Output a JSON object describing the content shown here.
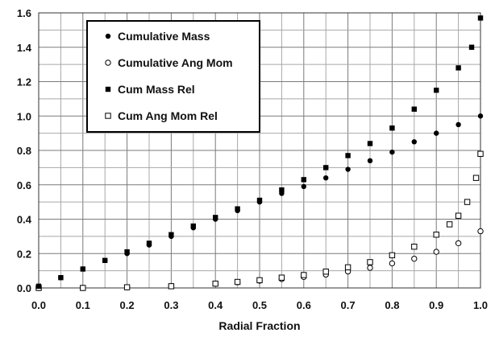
{
  "chart_data": {
    "type": "scatter",
    "title": "",
    "xlabel": "Radial Fraction",
    "ylabel": "",
    "xlim": [
      0,
      1
    ],
    "ylim": [
      0,
      1.6
    ],
    "x_ticks": [
      "0.0",
      "0.1",
      "0.2",
      "0.3",
      "0.4",
      "0.5",
      "0.6",
      "0.7",
      "0.8",
      "0.9",
      "1.0"
    ],
    "y_ticks": [
      "0.0",
      "0.2",
      "0.4",
      "0.6",
      "0.8",
      "1.0",
      "1.2",
      "1.4",
      "1.6"
    ],
    "grid": true,
    "legend_position": "top-left",
    "series": [
      {
        "name": "Cumulative Mass",
        "marker": "filled-circle",
        "x": [
          0,
          0.05,
          0.1,
          0.15,
          0.2,
          0.25,
          0.3,
          0.35,
          0.4,
          0.45,
          0.5,
          0.55,
          0.6,
          0.65,
          0.7,
          0.75,
          0.8,
          0.85,
          0.9,
          0.95,
          1.0
        ],
        "values": [
          0.01,
          0.06,
          0.11,
          0.16,
          0.2,
          0.25,
          0.3,
          0.35,
          0.4,
          0.45,
          0.5,
          0.55,
          0.59,
          0.64,
          0.69,
          0.74,
          0.79,
          0.85,
          0.9,
          0.95,
          1.0
        ]
      },
      {
        "name": "Cumulative Ang Mom",
        "marker": "open-circle",
        "x": [
          0,
          0.1,
          0.2,
          0.3,
          0.4,
          0.45,
          0.5,
          0.55,
          0.6,
          0.65,
          0.7,
          0.75,
          0.8,
          0.85,
          0.9,
          0.95,
          1.0
        ],
        "values": [
          0.0,
          0.0,
          0.004,
          0.01,
          0.025,
          0.033,
          0.042,
          0.052,
          0.064,
          0.078,
          0.096,
          0.117,
          0.143,
          0.17,
          0.21,
          0.26,
          0.33
        ]
      },
      {
        "name": "Cum Mass Rel",
        "marker": "filled-square",
        "x": [
          0,
          0.05,
          0.1,
          0.15,
          0.2,
          0.25,
          0.3,
          0.35,
          0.4,
          0.45,
          0.5,
          0.55,
          0.6,
          0.65,
          0.7,
          0.75,
          0.8,
          0.85,
          0.9,
          0.95,
          0.98,
          1.0
        ],
        "values": [
          0.01,
          0.06,
          0.11,
          0.16,
          0.21,
          0.26,
          0.31,
          0.36,
          0.41,
          0.46,
          0.51,
          0.57,
          0.63,
          0.7,
          0.77,
          0.84,
          0.93,
          1.04,
          1.15,
          1.28,
          1.4,
          1.57
        ]
      },
      {
        "name": "Cum Ang Mom Rel",
        "marker": "open-square",
        "x": [
          0,
          0.1,
          0.2,
          0.3,
          0.4,
          0.45,
          0.5,
          0.55,
          0.6,
          0.65,
          0.7,
          0.75,
          0.8,
          0.85,
          0.9,
          0.93,
          0.95,
          0.97,
          0.99,
          1.0
        ],
        "values": [
          0.0,
          0.0,
          0.004,
          0.01,
          0.025,
          0.035,
          0.045,
          0.06,
          0.075,
          0.095,
          0.12,
          0.15,
          0.19,
          0.24,
          0.31,
          0.37,
          0.42,
          0.5,
          0.64,
          0.78
        ]
      }
    ]
  }
}
